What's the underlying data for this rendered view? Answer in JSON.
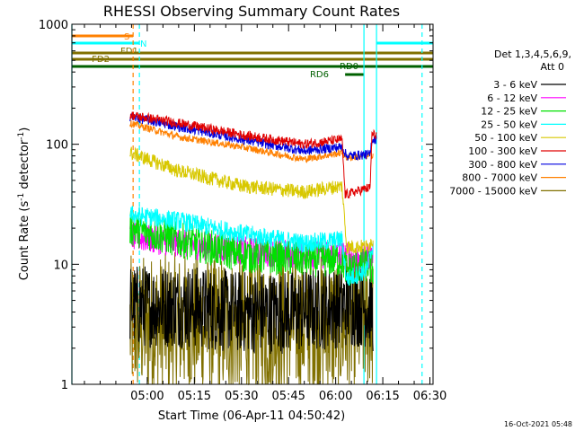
{
  "chart_data": {
    "type": "line",
    "title": "RHESSI Observing Summary Count Rates",
    "xlabel": "Start Time (06-Apr-11 04:50:42)",
    "ylabel_main": "Count Rate (s",
    "ylabel_sup1": "-1",
    "ylabel_mid": " detector",
    "ylabel_sup2": "-1",
    "ylabel_end": ")",
    "y_scale": "log",
    "ylim": [
      1,
      1000
    ],
    "xlim_minutes": [
      -14,
      101
    ],
    "x_ticks": [
      {
        "m": 10,
        "label": "05:00"
      },
      {
        "m": 25,
        "label": "05:15"
      },
      {
        "m": 40,
        "label": "05:30"
      },
      {
        "m": 55,
        "label": "05:45"
      },
      {
        "m": 70,
        "label": "06:00"
      },
      {
        "m": 85,
        "label": "06:15"
      },
      {
        "m": 100,
        "label": "06:30"
      }
    ],
    "y_ticks": [
      {
        "v": 1,
        "label": "1"
      },
      {
        "v": 10,
        "label": "10"
      },
      {
        "v": 100,
        "label": "100"
      },
      {
        "v": 1000,
        "label": "1000"
      }
    ],
    "legend": {
      "header1": "Det 1,3,4,5,6,9,",
      "header2": "Att 0",
      "entries": [
        {
          "label": "3 - 6 keV",
          "color": "#000000"
        },
        {
          "label": "6 - 12 keV",
          "color": "#ff00ff"
        },
        {
          "label": "12 - 25 keV",
          "color": "#00e000"
        },
        {
          "label": "25 - 50 keV",
          "color": "#00ffff"
        },
        {
          "label": "50 - 100 keV",
          "color": "#d8c800"
        },
        {
          "label": "100 - 300 keV",
          "color": "#e00000"
        },
        {
          "label": "300 - 800 keV",
          "color": "#0000e0"
        },
        {
          "label": "800 - 7000 keV",
          "color": "#ff8000"
        },
        {
          "label": "7000 - 15000 keV",
          "color": "#807000"
        }
      ]
    },
    "series": [
      {
        "name": "3 - 6 keV",
        "color": "#000000",
        "noise": 0.35,
        "points": [
          [
            4.5,
            4.5
          ],
          [
            20,
            4.5
          ],
          [
            40,
            4.0
          ],
          [
            57,
            4.0
          ],
          [
            72,
            4.5
          ],
          [
            80,
            4.5
          ],
          [
            82,
            4.0
          ]
        ]
      },
      {
        "name": "6 - 12 keV",
        "color": "#ff00ff",
        "noise": 0.12,
        "points": [
          [
            4.5,
            17
          ],
          [
            20,
            15
          ],
          [
            40,
            13
          ],
          [
            60,
            12
          ],
          [
            72,
            12
          ],
          [
            76,
            11
          ],
          [
            82,
            12
          ]
        ]
      },
      {
        "name": "12 - 25 keV",
        "color": "#00e000",
        "noise": 0.15,
        "points": [
          [
            4.5,
            20
          ],
          [
            20,
            16
          ],
          [
            40,
            12
          ],
          [
            60,
            11
          ],
          [
            72,
            11
          ],
          [
            73.5,
            9
          ],
          [
            80,
            10
          ],
          [
            82,
            9
          ]
        ]
      },
      {
        "name": "25 - 50 keV",
        "color": "#00ffff",
        "noise": 0.08,
        "points": [
          [
            4.5,
            26
          ],
          [
            20,
            23
          ],
          [
            40,
            18
          ],
          [
            60,
            15
          ],
          [
            72,
            16
          ],
          [
            73.5,
            7.5
          ],
          [
            80,
            9
          ],
          [
            82,
            15
          ]
        ]
      },
      {
        "name": "50 - 100 keV",
        "color": "#d8c800",
        "noise": 0.06,
        "points": [
          [
            4.5,
            85
          ],
          [
            20,
            60
          ],
          [
            40,
            45
          ],
          [
            60,
            40
          ],
          [
            72,
            45
          ],
          [
            73.5,
            14
          ],
          [
            80,
            14
          ],
          [
            82,
            16
          ]
        ]
      },
      {
        "name": "100 - 300 keV",
        "color": "#e00000",
        "noise": 0.04,
        "points": [
          [
            4.5,
            175
          ],
          [
            20,
            150
          ],
          [
            40,
            120
          ],
          [
            60,
            100
          ],
          [
            72,
            110
          ],
          [
            73,
            38
          ],
          [
            80,
            43
          ],
          [
            81,
            43
          ],
          [
            81.5,
            120
          ],
          [
            83,
            120
          ]
        ]
      },
      {
        "name": "300 - 800 keV",
        "color": "#0000e0",
        "noise": 0.04,
        "points": [
          [
            4.5,
            170
          ],
          [
            20,
            140
          ],
          [
            40,
            110
          ],
          [
            60,
            88
          ],
          [
            72,
            95
          ],
          [
            73.5,
            80
          ],
          [
            80,
            82
          ],
          [
            81,
            82
          ],
          [
            81.5,
            110
          ],
          [
            83,
            110
          ]
        ]
      },
      {
        "name": "800 - 7000 keV",
        "color": "#ff8000",
        "noise": 0.03,
        "points": [
          [
            4.5,
            150
          ],
          [
            20,
            115
          ],
          [
            40,
            95
          ],
          [
            60,
            75
          ],
          [
            72,
            85
          ],
          [
            73.5,
            77
          ],
          [
            80,
            80
          ],
          [
            82,
            82
          ]
        ]
      },
      {
        "name": "7000 - 15000 keV",
        "color": "#807000",
        "noise": 0.6,
        "points": [
          [
            4.5,
            3.0
          ],
          [
            20,
            3.2
          ],
          [
            40,
            3.0
          ],
          [
            60,
            3.2
          ],
          [
            72,
            3.0
          ],
          [
            80,
            3.5
          ],
          [
            82,
            3.5
          ]
        ]
      }
    ],
    "vlines": [
      {
        "m": -14,
        "color": "#00ffff",
        "dash": false
      },
      {
        "m": 5.5,
        "color": "#ff8000",
        "dash": true
      },
      {
        "m": 7.5,
        "color": "#00ffff",
        "dash": true
      },
      {
        "m": 79,
        "color": "#00ffff",
        "dash": false
      },
      {
        "m": 83,
        "color": "#00ffff",
        "dash": false
      },
      {
        "m": 97.5,
        "color": "#00ffff",
        "dash": true
      }
    ],
    "flag_bars": [
      {
        "label": "S",
        "color": "#ff8000",
        "segments": [
          [
            -14,
            5.5
          ]
        ]
      },
      {
        "label": "N",
        "color": "#00ffff",
        "segments": [
          [
            -14,
            7.5
          ],
          [
            83,
            101
          ]
        ]
      },
      {
        "label": "FD1",
        "color": "#807000",
        "segments": [
          [
            -14,
            101
          ]
        ]
      },
      {
        "label": "FD2",
        "color": "#807000",
        "segments": [
          [
            -14,
            101
          ]
        ]
      },
      {
        "label": "RD0",
        "color": "#006000",
        "segments": [
          [
            -14,
            101
          ]
        ]
      },
      {
        "label": "RD6",
        "color": "#006000",
        "segments": [
          [
            73,
            79
          ]
        ]
      }
    ]
  },
  "footer_date": "16-Oct-2021 05:48"
}
